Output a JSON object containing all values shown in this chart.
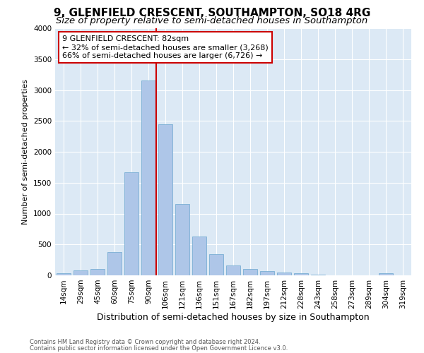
{
  "title1": "9, GLENFIELD CRESCENT, SOUTHAMPTON, SO18 4RG",
  "title2": "Size of property relative to semi-detached houses in Southampton",
  "xlabel": "Distribution of semi-detached houses by size in Southampton",
  "ylabel": "Number of semi-detached properties",
  "categories": [
    "14sqm",
    "29sqm",
    "45sqm",
    "60sqm",
    "75sqm",
    "90sqm",
    "106sqm",
    "121sqm",
    "136sqm",
    "151sqm",
    "167sqm",
    "182sqm",
    "197sqm",
    "212sqm",
    "228sqm",
    "243sqm",
    "258sqm",
    "273sqm",
    "289sqm",
    "304sqm",
    "319sqm"
  ],
  "values": [
    30,
    80,
    100,
    380,
    1670,
    3150,
    2450,
    1150,
    630,
    340,
    160,
    100,
    65,
    45,
    30,
    10,
    5,
    5,
    0,
    30,
    0
  ],
  "bar_color": "#aec6e8",
  "bar_edgecolor": "#7bafd4",
  "vline_x": 5.47,
  "vline_color": "#cc0000",
  "annotation_text": "9 GLENFIELD CRESCENT: 82sqm\n← 32% of semi-detached houses are smaller (3,268)\n66% of semi-detached houses are larger (6,726) →",
  "annotation_box_color": "#cc0000",
  "ylim": [
    0,
    4000
  ],
  "yticks": [
    0,
    500,
    1000,
    1500,
    2000,
    2500,
    3000,
    3500,
    4000
  ],
  "plot_bg_color": "#dce9f5",
  "footer1": "Contains HM Land Registry data © Crown copyright and database right 2024.",
  "footer2": "Contains public sector information licensed under the Open Government Licence v3.0.",
  "title1_fontsize": 11,
  "title2_fontsize": 9.5,
  "xlabel_fontsize": 9,
  "ylabel_fontsize": 8,
  "tick_fontsize": 7.5,
  "annotation_fontsize": 8,
  "footer_fontsize": 6
}
